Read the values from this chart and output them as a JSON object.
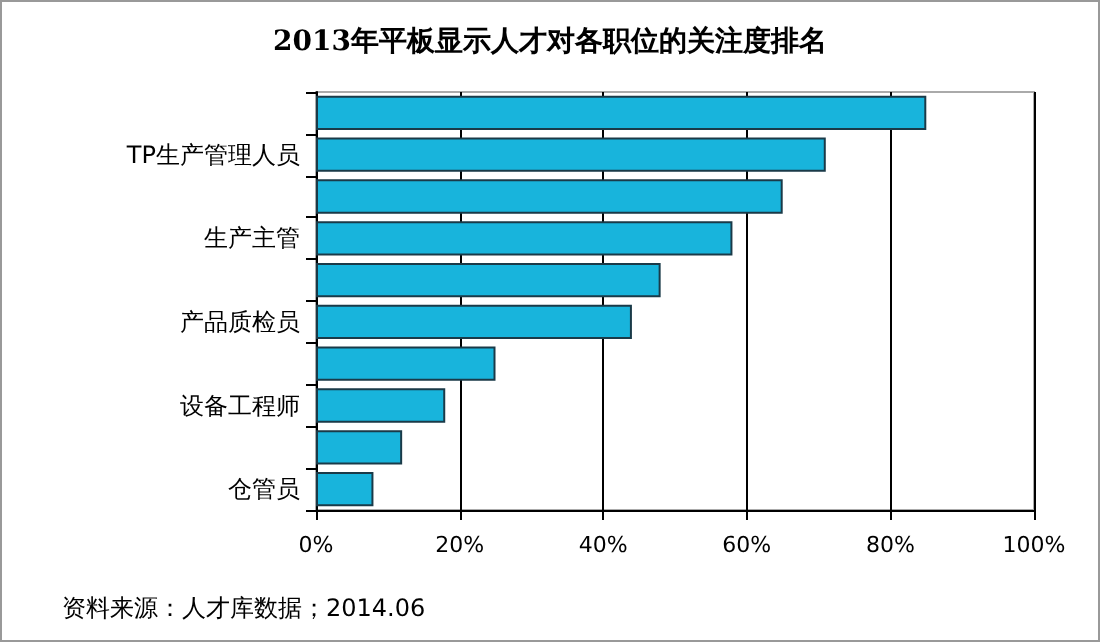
{
  "chart_data": {
    "type": "bar",
    "orientation": "horizontal",
    "title": "2013年平板显示人才对各职位的关注度排名",
    "categories": [
      null,
      "TP生产管理人员",
      null,
      "生产主管",
      null,
      "产品质检员",
      null,
      "设备工程师",
      null,
      "仓管员"
    ],
    "values": [
      85,
      71,
      65,
      58,
      48,
      44,
      25,
      18,
      12,
      8
    ],
    "color": "#18b4dc",
    "xlim": [
      0,
      100
    ],
    "xticks": [
      {
        "value": 0,
        "label": "0%"
      },
      {
        "value": 20,
        "label": "20%"
      },
      {
        "value": 40,
        "label": "40%"
      },
      {
        "value": 60,
        "label": "60%"
      },
      {
        "value": 80,
        "label": "80%"
      },
      {
        "value": 100,
        "label": "100%"
      }
    ],
    "grid": "x",
    "annotations": [
      "资料来源：人才库数据；2014.06"
    ]
  }
}
